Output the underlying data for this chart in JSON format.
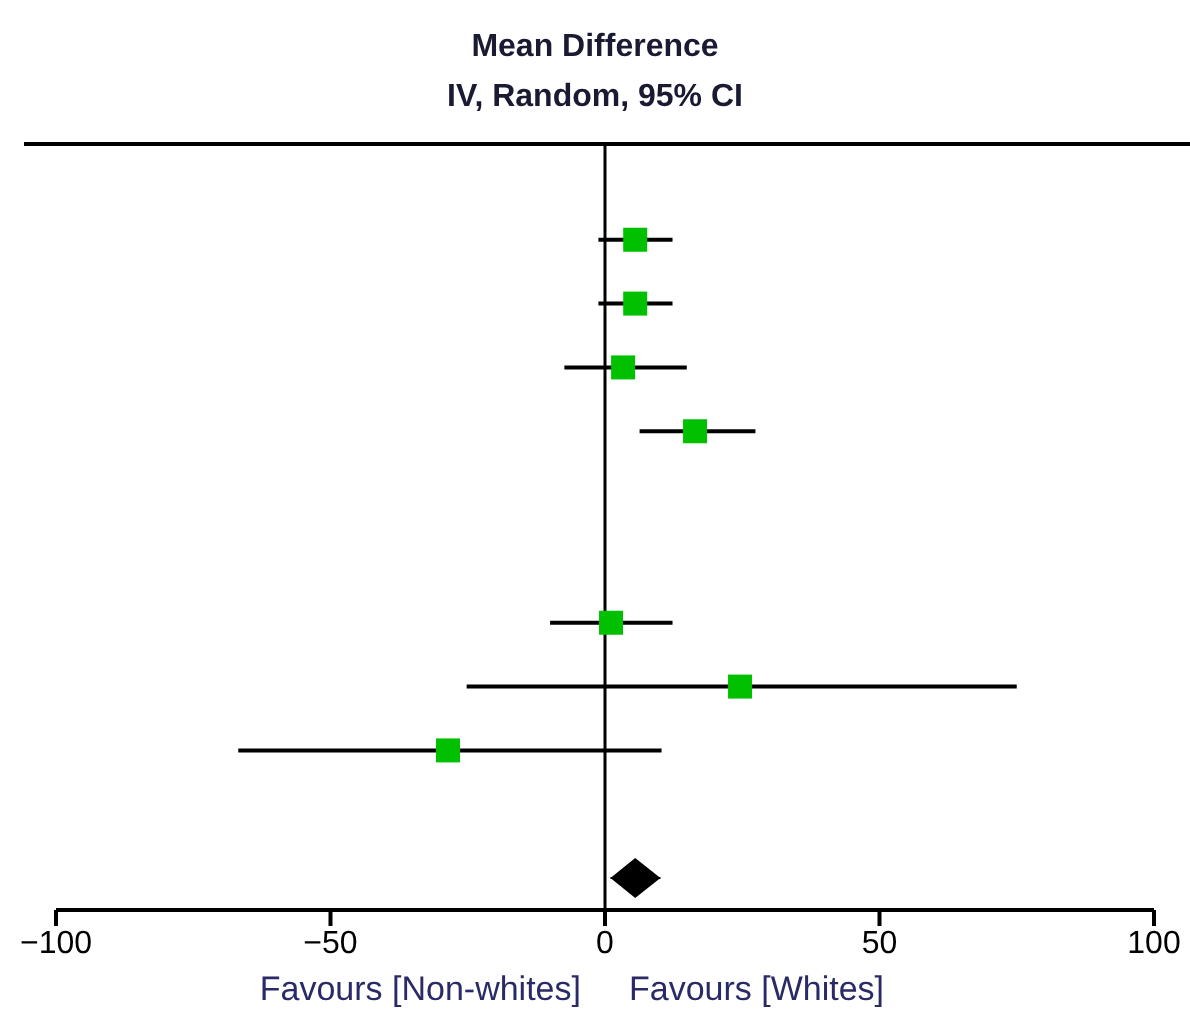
{
  "chart_data": {
    "type": "scatter",
    "title": "Mean Difference",
    "subtitle": "IV, Random, 95% CI",
    "orientation": "horizontal",
    "categories": [
      null,
      null,
      null,
      null,
      null,
      null,
      null,
      null,
      null,
      null,
      null,
      null
    ],
    "series": [
      {
        "color": "#00c000",
        "marker": "square",
        "values": [
          null,
          5.5,
          5.5,
          3.3,
          16.4,
          null,
          null,
          1.1,
          24.6,
          -28.6,
          null,
          null
        ],
        "errors": [
          null,
          [
            -1.2,
            12.3
          ],
          [
            -1.2,
            12.3
          ],
          [
            -7.4,
            14.9
          ],
          [
            6.3,
            27.4
          ],
          null,
          null,
          [
            -10,
            12.3
          ],
          [
            -25.2,
            75
          ],
          [
            -66.8,
            10.3
          ],
          null,
          null
        ]
      },
      {
        "color": "#000000",
        "marker": "diamond",
        "values": [
          null,
          null,
          null,
          null,
          null,
          null,
          null,
          null,
          null,
          null,
          null,
          5.5
        ],
        "errors": [
          null,
          null,
          null,
          null,
          null,
          null,
          null,
          null,
          null,
          null,
          null,
          [
            1.0,
            10.1
          ]
        ]
      }
    ],
    "xlim": [
      -100,
      100
    ],
    "xticks": [
      {
        "value": -100,
        "label": "−100"
      },
      {
        "value": -50,
        "label": "−50"
      },
      0,
      50,
      100
    ],
    "ref_lines": [
      {
        "axis": "x",
        "value": 0
      }
    ],
    "annotations": [
      "Favours [Non-whites]",
      "Favours [Whites]"
    ],
    "grid": false,
    "legend": false
  }
}
